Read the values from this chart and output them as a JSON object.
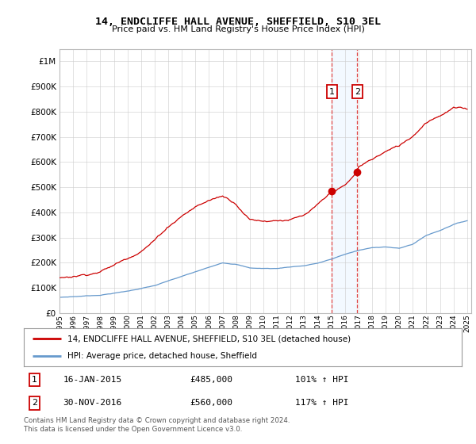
{
  "title": "14, ENDCLIFFE HALL AVENUE, SHEFFIELD, S10 3EL",
  "subtitle": "Price paid vs. HM Land Registry's House Price Index (HPI)",
  "legend_line1": "14, ENDCLIFFE HALL AVENUE, SHEFFIELD, S10 3EL (detached house)",
  "legend_line2": "HPI: Average price, detached house, Sheffield",
  "annotation1_date": "16-JAN-2015",
  "annotation1_price": "£485,000",
  "annotation1_hpi": "101% ↑ HPI",
  "annotation2_date": "30-NOV-2016",
  "annotation2_price": "£560,000",
  "annotation2_hpi": "117% ↑ HPI",
  "footer": "Contains HM Land Registry data © Crown copyright and database right 2024.\nThis data is licensed under the Open Government Licence v3.0.",
  "red_color": "#cc0000",
  "blue_color": "#6699cc",
  "background_color": "#ffffff",
  "grid_color": "#cccccc",
  "annotation_box_color": "#cc0000",
  "shaded_region_color": "#ddeeff",
  "ylim_min": 0,
  "ylim_max": 1050000,
  "sale1_year": 2015.04,
  "sale1_price": 485000,
  "sale2_year": 2016.92,
  "sale2_price": 560000,
  "figwidth": 6.0,
  "figheight": 5.6,
  "dpi": 100
}
